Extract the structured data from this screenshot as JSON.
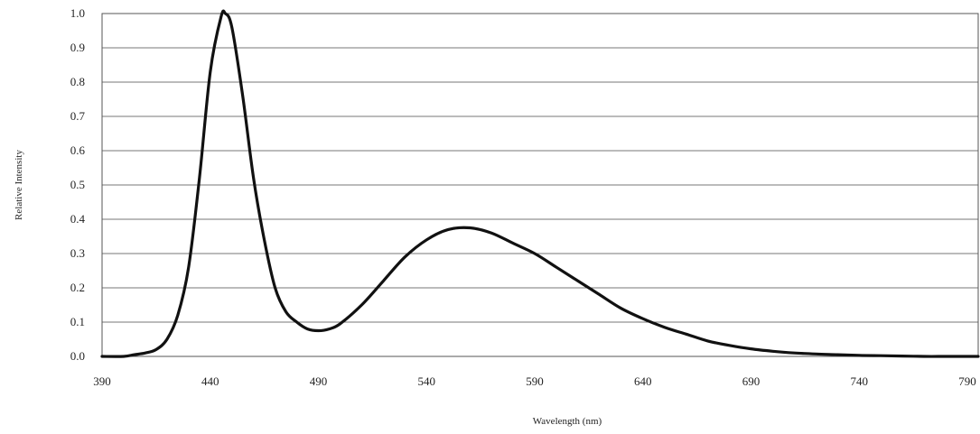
{
  "chart_data": {
    "type": "line",
    "xlabel": "Wavelength (nm)",
    "ylabel": "Relative Intensity",
    "xlim": [
      390,
      795
    ],
    "ylim": [
      0,
      1.0
    ],
    "x_ticks": [
      390,
      440,
      490,
      540,
      590,
      640,
      690,
      740,
      790
    ],
    "y_ticks": [
      "0.0",
      "0.1",
      "0.2",
      "0.3",
      "0.4",
      "0.5",
      "0.6",
      "0.7",
      "0.8",
      "0.9",
      "1.0"
    ],
    "grid": "horizontal",
    "legend": "none",
    "line_color": "#111111",
    "series": [
      {
        "x": [
          390,
          400,
          405,
          410,
          415,
          420,
          425,
          430,
          435,
          440,
          445,
          447,
          450,
          455,
          460,
          465,
          470,
          475,
          480,
          485,
          490,
          495,
          500,
          510,
          520,
          530,
          540,
          550,
          560,
          570,
          580,
          590,
          600,
          610,
          620,
          630,
          640,
          650,
          660,
          670,
          680,
          690,
          700,
          710,
          720,
          730,
          740,
          750,
          760,
          770,
          780,
          790,
          795
        ],
        "y": [
          0.0,
          0.0,
          0.005,
          0.01,
          0.02,
          0.05,
          0.12,
          0.26,
          0.52,
          0.83,
          0.99,
          1.0,
          0.96,
          0.76,
          0.52,
          0.34,
          0.2,
          0.13,
          0.1,
          0.08,
          0.075,
          0.08,
          0.095,
          0.15,
          0.22,
          0.29,
          0.34,
          0.37,
          0.375,
          0.36,
          0.33,
          0.3,
          0.26,
          0.22,
          0.18,
          0.14,
          0.11,
          0.085,
          0.065,
          0.045,
          0.032,
          0.022,
          0.015,
          0.01,
          0.007,
          0.005,
          0.003,
          0.002,
          0.001,
          0.0,
          0.0,
          0.0,
          0.0
        ]
      }
    ]
  }
}
